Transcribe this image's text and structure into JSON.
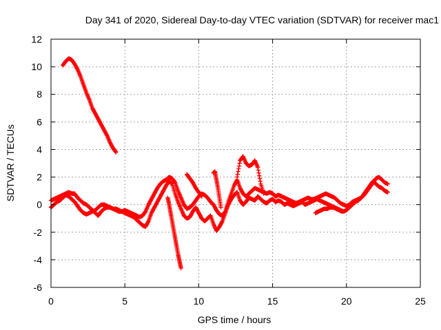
{
  "chart_data": {
    "type": "scatter",
    "title": "Day 341 of 2020, Sidereal Day-to-day VTEC variation (SDTVAR) for receiver mac1",
    "xlabel": "GPS time / hours",
    "ylabel": "SDTVAR / TECUs",
    "xlim": [
      0,
      25
    ],
    "ylim": [
      -6,
      12
    ],
    "xticks": [
      0,
      5,
      10,
      15,
      20,
      25
    ],
    "yticks": [
      -6,
      -4,
      -2,
      0,
      2,
      4,
      6,
      8,
      10,
      12
    ],
    "xtick_labels": [
      "0",
      "5",
      "10",
      "15",
      "20",
      "25"
    ],
    "ytick_labels": [
      "-6",
      "-4",
      "-2",
      "0",
      "2",
      "4",
      "6",
      "8",
      "10",
      "12"
    ],
    "grid": true,
    "marker": "+",
    "series": [
      {
        "name": "high-tail",
        "color": "#ff0000",
        "x": [
          0.8,
          1.0,
          1.2,
          1.4,
          1.6,
          1.8,
          2.0,
          2.2,
          2.4,
          2.6,
          2.8,
          3.0,
          3.2,
          3.4,
          3.6,
          3.8,
          4.0,
          4.2,
          4.4
        ],
        "y": [
          10.1,
          10.4,
          10.6,
          10.5,
          10.2,
          9.8,
          9.3,
          8.7,
          8.1,
          7.6,
          7.0,
          6.6,
          6.2,
          5.8,
          5.4,
          5.0,
          4.5,
          4.1,
          3.8
        ]
      },
      {
        "name": "track-a",
        "color": "#ff0000",
        "x": [
          0.0,
          0.2,
          0.4,
          0.6,
          0.8,
          1.0,
          1.2,
          1.4,
          1.6,
          1.8,
          2.0,
          2.2,
          2.4,
          2.6,
          2.8,
          3.0,
          3.2,
          3.4,
          3.6,
          3.8,
          4.0,
          4.2,
          4.4,
          4.6,
          4.8,
          5.0,
          5.2,
          5.4,
          5.6,
          5.8,
          6.0,
          6.2,
          6.4,
          6.6,
          6.8,
          7.0,
          7.2,
          7.4,
          7.6,
          7.8,
          8.0,
          8.2,
          8.4,
          8.6,
          8.8,
          9.0,
          9.2,
          9.4,
          9.6,
          9.8,
          10.0,
          10.2,
          10.4,
          10.6,
          10.8,
          11.0,
          11.2,
          11.4,
          11.6,
          11.8,
          12.0,
          12.2,
          12.4,
          12.6,
          12.8,
          13.0,
          13.2,
          13.4,
          13.6,
          13.8,
          14.0,
          14.2,
          14.4,
          14.6,
          14.8,
          15.0,
          15.2,
          15.4,
          15.6,
          15.8,
          16.0,
          16.2,
          16.4,
          16.6,
          16.8,
          17.0,
          17.2,
          17.4,
          17.6,
          17.8,
          18.0,
          18.2,
          18.4,
          18.6,
          18.8,
          19.0,
          19.2,
          19.4,
          19.6,
          19.8,
          20.0,
          20.2,
          20.4,
          20.6,
          20.8,
          21.0,
          21.2,
          21.4,
          21.6,
          21.8,
          22.0,
          22.2,
          22.4,
          22.6,
          22.8
        ],
        "y": [
          0.3,
          0.4,
          0.5,
          0.6,
          0.7,
          0.8,
          0.9,
          0.8,
          0.8,
          0.5,
          0.3,
          0.1,
          0.0,
          -0.2,
          -0.4,
          -0.6,
          -0.8,
          -0.5,
          -0.3,
          -0.2,
          -0.2,
          -0.3,
          -0.4,
          -0.5,
          -0.5,
          -0.4,
          -0.5,
          -0.6,
          -0.7,
          -0.8,
          -0.9,
          -0.8,
          -0.5,
          0.0,
          0.4,
          0.8,
          1.2,
          1.5,
          1.7,
          1.8,
          2.0,
          1.9,
          1.6,
          1.0,
          0.5,
          0.0,
          -0.3,
          -0.2,
          0.0,
          0.3,
          0.6,
          0.8,
          0.7,
          0.5,
          0.2,
          0.0,
          -0.4,
          -0.7,
          -0.8,
          -0.5,
          0.2,
          0.8,
          1.4,
          1.8,
          1.2,
          0.8,
          0.6,
          0.8,
          1.0,
          1.2,
          1.1,
          1.0,
          0.9,
          0.8,
          0.9,
          0.8,
          0.6,
          0.7,
          0.6,
          0.5,
          0.4,
          0.3,
          0.2,
          0.1,
          0.2,
          0.3,
          0.4,
          0.5,
          0.4,
          0.4,
          0.5,
          0.6,
          0.7,
          0.8,
          0.7,
          0.6,
          0.5,
          0.3,
          0.1,
          0.0,
          -0.1,
          0.0,
          0.2,
          0.3,
          0.4,
          0.5,
          0.7,
          1.0,
          1.3,
          1.6,
          1.9,
          2.0,
          1.8,
          1.6,
          1.5
        ]
      },
      {
        "name": "track-b",
        "color": "#ff0000",
        "x": [
          0.0,
          0.2,
          0.4,
          0.6,
          0.8,
          1.0,
          1.2,
          1.4,
          1.6,
          1.8,
          2.0,
          2.2,
          2.4,
          2.6,
          2.8,
          3.0,
          3.2,
          3.4,
          3.6,
          3.8,
          4.0,
          4.2,
          4.4,
          4.6,
          4.8,
          5.0,
          5.2,
          5.4,
          5.6,
          5.8,
          6.0,
          6.2,
          6.4,
          6.6,
          6.8,
          7.0,
          7.2,
          7.4,
          7.6,
          7.8,
          8.0,
          8.2,
          8.4,
          8.6,
          8.8,
          9.0,
          9.2,
          9.4,
          9.6,
          9.8,
          10.0,
          10.2,
          10.4,
          10.6,
          10.8,
          11.0,
          11.2,
          11.4,
          11.6,
          11.8,
          12.0,
          12.2,
          12.4,
          12.6,
          12.8,
          13.0,
          13.2,
          13.4,
          13.6,
          13.8,
          14.0,
          14.2,
          14.4,
          14.6,
          14.8,
          15.0,
          15.2,
          15.4,
          15.6,
          15.8,
          16.0,
          16.2,
          16.4,
          16.6,
          16.8,
          17.0,
          17.2,
          17.4,
          17.6,
          17.8,
          18.0,
          18.2,
          18.4,
          18.6,
          18.8,
          19.0,
          19.2,
          19.4,
          19.6,
          19.8,
          20.0,
          20.2,
          20.4,
          20.6,
          20.8,
          21.0,
          21.2,
          21.4,
          21.6,
          21.8,
          22.0,
          22.2,
          22.4,
          22.6,
          22.8
        ],
        "y": [
          -0.2,
          0.0,
          0.2,
          0.3,
          0.5,
          0.7,
          0.6,
          0.4,
          0.2,
          -0.1,
          -0.4,
          -0.6,
          -0.7,
          -0.6,
          -0.5,
          -0.4,
          -0.2,
          0.0,
          0.0,
          -0.1,
          -0.2,
          -0.3,
          -0.3,
          -0.4,
          -0.5,
          -0.6,
          -0.7,
          -0.8,
          -0.9,
          -1.1,
          -1.3,
          -1.5,
          -1.6,
          -1.2,
          -0.6,
          -0.2,
          0.2,
          0.6,
          1.0,
          1.4,
          1.7,
          1.5,
          0.8,
          0.2,
          -0.3,
          -0.8,
          -1.0,
          -0.9,
          -0.5,
          -0.2,
          -0.6,
          -1.0,
          -1.2,
          -1.0,
          -0.8,
          -1.4,
          -1.9,
          -1.6,
          -1.2,
          -0.6,
          0.0,
          0.4,
          0.7,
          0.9,
          0.3,
          0.0,
          0.2,
          0.5,
          0.4,
          0.3,
          0.6,
          0.4,
          0.2,
          0.1,
          0.3,
          0.4,
          0.2,
          0.3,
          0.2,
          0.0,
          0.1,
          0.0,
          -0.1,
          0.0,
          0.1,
          0.2,
          0.0,
          0.1,
          0.2,
          0.3,
          0.4,
          0.3,
          0.2,
          0.1,
          0.0,
          -0.1,
          -0.2,
          -0.3,
          -0.4,
          -0.5,
          -0.4,
          -0.2,
          0.0,
          0.2,
          0.3,
          0.5,
          0.8,
          1.1,
          1.4,
          1.7,
          1.5,
          1.3,
          1.2,
          1.0,
          0.9
        ]
      },
      {
        "name": "dip-8-9h",
        "color": "#ff0000",
        "x": [
          7.9,
          8.0,
          8.1,
          8.2,
          8.3,
          8.4,
          8.5,
          8.6,
          8.7,
          8.8
        ],
        "y": [
          0.5,
          0.0,
          -0.6,
          -1.2,
          -1.8,
          -2.4,
          -3.0,
          -3.6,
          -4.1,
          -4.6
        ]
      },
      {
        "name": "hump-13h",
        "color": "#ff0000",
        "x": [
          12.6,
          12.8,
          13.0,
          13.2,
          13.4,
          13.6,
          13.8,
          14.0,
          14.2,
          14.4
        ],
        "y": [
          2.0,
          3.2,
          3.5,
          3.0,
          2.8,
          2.9,
          3.2,
          2.7,
          1.5,
          0.8
        ]
      },
      {
        "name": "rise-11h",
        "color": "#ff0000",
        "x": [
          11.0,
          11.1,
          11.2,
          11.3,
          11.4,
          11.5
        ],
        "y": [
          2.3,
          2.4,
          1.8,
          1.2,
          0.5,
          -0.2
        ]
      },
      {
        "name": "bump-9h",
        "color": "#ff0000",
        "x": [
          9.2,
          9.4,
          9.6,
          9.8,
          10.0,
          10.2
        ],
        "y": [
          2.2,
          1.9,
          1.6,
          1.2,
          0.9,
          0.6
        ]
      },
      {
        "name": "tail-18h",
        "color": "#ff0000",
        "x": [
          17.9,
          18.1,
          18.3,
          18.5,
          18.7,
          18.9,
          19.1,
          19.3,
          19.5,
          19.7
        ],
        "y": [
          -0.6,
          -0.5,
          -0.4,
          -0.3,
          -0.3,
          -0.2,
          -0.2,
          -0.3,
          -0.4,
          -0.5
        ]
      }
    ]
  }
}
